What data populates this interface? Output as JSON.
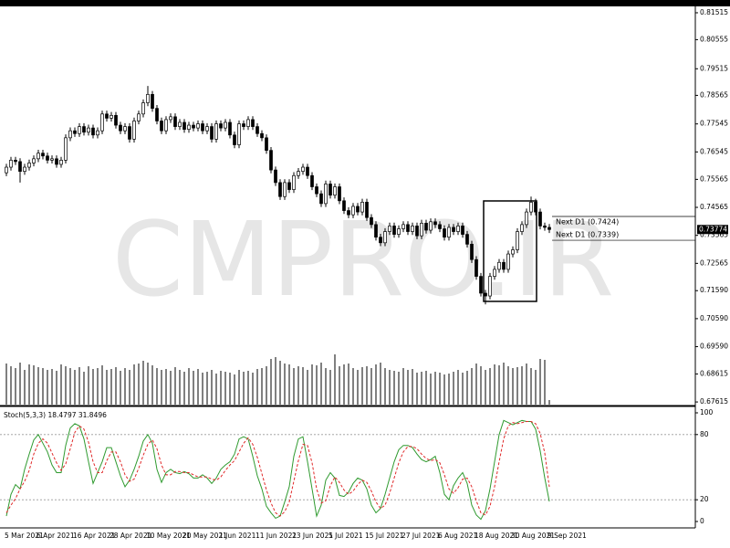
{
  "chart_data": [
    {
      "type": "candlestick",
      "watermark": "CMPRO.IR",
      "categories": [
        "5 Mar 2021",
        null,
        null,
        null,
        null,
        null,
        null,
        "6 Apr 2021",
        null,
        null,
        null,
        null,
        null,
        null,
        null,
        "16 Apr 2021",
        null,
        null,
        null,
        null,
        null,
        null,
        null,
        "28 Apr 2021",
        null,
        null,
        null,
        null,
        null,
        null,
        null,
        "10 May 2021",
        null,
        null,
        null,
        null,
        null,
        null,
        null,
        "20 May 2021",
        null,
        null,
        null,
        null,
        null,
        null,
        null,
        "1 Jun 2021",
        null,
        null,
        null,
        null,
        null,
        null,
        null,
        "11 Jun 2021",
        null,
        null,
        null,
        null,
        null,
        null,
        null,
        "23 Jun 2021",
        null,
        null,
        null,
        null,
        null,
        null,
        null,
        "5 Jul 2021",
        null,
        null,
        null,
        null,
        null,
        null,
        null,
        "15 Jul 2021",
        null,
        null,
        null,
        null,
        null,
        null,
        null,
        "27 Jul 2021",
        null,
        null,
        null,
        null,
        null,
        null,
        null,
        "6 Aug 2021",
        null,
        null,
        null,
        null,
        null,
        null,
        null,
        "18 Aug 2021",
        null,
        null,
        null,
        null,
        null,
        null,
        null,
        "30 Aug 2021",
        null,
        null,
        null,
        null,
        null,
        null,
        null,
        "9 Sep 2021"
      ],
      "open": [
        0.758,
        0.76,
        0.7625,
        0.762,
        0.7585,
        0.76,
        0.7615,
        0.763,
        0.765,
        0.764,
        0.7625,
        0.763,
        0.761,
        0.7625,
        0.7705,
        0.773,
        0.772,
        0.7745,
        0.7725,
        0.774,
        0.7715,
        0.773,
        0.779,
        0.7775,
        0.7785,
        0.775,
        0.773,
        0.7745,
        0.77,
        0.7765,
        0.779,
        0.783,
        0.786,
        0.781,
        0.7765,
        0.773,
        0.777,
        0.778,
        0.7745,
        0.776,
        0.7735,
        0.775,
        0.774,
        0.7755,
        0.773,
        0.7745,
        0.77,
        0.7755,
        0.774,
        0.776,
        0.7715,
        0.768,
        0.7755,
        0.7745,
        0.777,
        0.7745,
        0.772,
        0.7705,
        0.766,
        0.759,
        0.7545,
        0.7495,
        0.7545,
        0.752,
        0.757,
        0.7585,
        0.76,
        0.757,
        0.753,
        0.7505,
        0.747,
        0.754,
        0.75,
        0.753,
        0.748,
        0.7445,
        0.743,
        0.746,
        0.744,
        0.7475,
        0.742,
        0.7395,
        0.735,
        0.733,
        0.737,
        0.739,
        0.736,
        0.738,
        0.7395,
        0.737,
        0.739,
        0.7355,
        0.74,
        0.7375,
        0.7405,
        0.7395,
        0.738,
        0.735,
        0.7385,
        0.737,
        0.739,
        0.736,
        0.7325,
        0.727,
        0.721,
        0.715,
        0.714,
        0.721,
        0.7235,
        0.726,
        0.7235,
        0.729,
        0.7305,
        0.737,
        0.7395,
        0.744,
        0.7475,
        0.744,
        0.739,
        0.7385
      ],
      "high": [
        0.7612,
        0.7637,
        0.7637,
        0.7632,
        0.7612,
        0.7627,
        0.7642,
        0.7662,
        0.7662,
        0.7652,
        0.7642,
        0.7642,
        0.7637,
        0.7717,
        0.7742,
        0.7742,
        0.7757,
        0.7757,
        0.7752,
        0.7752,
        0.7742,
        0.7802,
        0.7802,
        0.7797,
        0.7797,
        0.7762,
        0.7757,
        0.7757,
        0.7777,
        0.7802,
        0.7842,
        0.789,
        0.7872,
        0.7822,
        0.7777,
        0.7782,
        0.7792,
        0.7792,
        0.7772,
        0.7772,
        0.7762,
        0.7762,
        0.7767,
        0.7767,
        0.7757,
        0.7757,
        0.7767,
        0.7767,
        0.7772,
        0.7772,
        0.7727,
        0.7767,
        0.7767,
        0.7782,
        0.7782,
        0.7757,
        0.7732,
        0.7717,
        0.7672,
        0.7602,
        0.7557,
        0.7557,
        0.7557,
        0.7582,
        0.7597,
        0.7612,
        0.7612,
        0.7582,
        0.7542,
        0.7517,
        0.7552,
        0.7552,
        0.7542,
        0.7542,
        0.7492,
        0.7457,
        0.7472,
        0.7472,
        0.7487,
        0.7487,
        0.7432,
        0.7407,
        0.7362,
        0.7382,
        0.7402,
        0.7402,
        0.7392,
        0.7407,
        0.7407,
        0.7402,
        0.7402,
        0.7412,
        0.7412,
        0.7417,
        0.7417,
        0.7407,
        0.7392,
        0.7397,
        0.7397,
        0.7402,
        0.7402,
        0.7372,
        0.7337,
        0.7282,
        0.7222,
        0.7162,
        0.7222,
        0.7247,
        0.7272,
        0.7272,
        0.7302,
        0.7317,
        0.7382,
        0.7407,
        0.7452,
        0.7495,
        0.7487,
        0.7452,
        0.7402,
        0.7397
      ],
      "low": [
        0.7568,
        0.7588,
        0.7608,
        0.7545,
        0.7573,
        0.7588,
        0.7603,
        0.7618,
        0.7628,
        0.7613,
        0.7613,
        0.7598,
        0.7598,
        0.7613,
        0.7693,
        0.7708,
        0.7708,
        0.7713,
        0.7713,
        0.7703,
        0.7703,
        0.7718,
        0.7763,
        0.7763,
        0.7738,
        0.7718,
        0.7718,
        0.7688,
        0.7688,
        0.7753,
        0.7778,
        0.7818,
        0.7798,
        0.7753,
        0.7718,
        0.7718,
        0.7758,
        0.7733,
        0.7733,
        0.7723,
        0.7723,
        0.7728,
        0.7728,
        0.7718,
        0.7718,
        0.7688,
        0.7688,
        0.7728,
        0.7728,
        0.7703,
        0.7668,
        0.7668,
        0.7733,
        0.7733,
        0.7733,
        0.7708,
        0.7693,
        0.7648,
        0.7578,
        0.7533,
        0.7483,
        0.7483,
        0.7508,
        0.7508,
        0.7558,
        0.7573,
        0.7558,
        0.7518,
        0.7493,
        0.7458,
        0.7458,
        0.7488,
        0.7488,
        0.7468,
        0.7433,
        0.7418,
        0.7418,
        0.7428,
        0.7428,
        0.7408,
        0.7383,
        0.7338,
        0.7318,
        0.7318,
        0.7358,
        0.7348,
        0.7348,
        0.7368,
        0.7358,
        0.7358,
        0.7343,
        0.7343,
        0.7363,
        0.7363,
        0.7383,
        0.7368,
        0.7338,
        0.7338,
        0.7358,
        0.7358,
        0.7348,
        0.7313,
        0.7258,
        0.7198,
        0.7138,
        0.711,
        0.7128,
        0.7198,
        0.7223,
        0.7223,
        0.7223,
        0.7278,
        0.7293,
        0.7358,
        0.7383,
        0.7428,
        0.7428,
        0.7378,
        0.7373,
        0.7365
      ],
      "close": [
        0.76,
        0.7625,
        0.762,
        0.7585,
        0.76,
        0.7615,
        0.763,
        0.765,
        0.764,
        0.7625,
        0.763,
        0.761,
        0.7625,
        0.7705,
        0.773,
        0.772,
        0.7745,
        0.7725,
        0.774,
        0.7715,
        0.773,
        0.779,
        0.7775,
        0.7785,
        0.775,
        0.773,
        0.7745,
        0.77,
        0.7765,
        0.779,
        0.783,
        0.786,
        0.781,
        0.7765,
        0.773,
        0.777,
        0.778,
        0.7745,
        0.776,
        0.7735,
        0.775,
        0.774,
        0.7755,
        0.773,
        0.7745,
        0.77,
        0.7755,
        0.774,
        0.776,
        0.7715,
        0.768,
        0.7755,
        0.7745,
        0.777,
        0.7745,
        0.772,
        0.7705,
        0.766,
        0.759,
        0.7545,
        0.7495,
        0.7545,
        0.752,
        0.757,
        0.7585,
        0.76,
        0.757,
        0.753,
        0.7505,
        0.747,
        0.754,
        0.75,
        0.753,
        0.748,
        0.7445,
        0.743,
        0.746,
        0.744,
        0.7475,
        0.742,
        0.7395,
        0.735,
        0.733,
        0.737,
        0.739,
        0.736,
        0.738,
        0.7395,
        0.737,
        0.739,
        0.7355,
        0.74,
        0.7375,
        0.7405,
        0.7395,
        0.738,
        0.735,
        0.7385,
        0.737,
        0.739,
        0.736,
        0.7325,
        0.727,
        0.721,
        0.715,
        0.714,
        0.721,
        0.7235,
        0.726,
        0.7235,
        0.729,
        0.7305,
        0.737,
        0.7395,
        0.744,
        0.7475,
        0.744,
        0.739,
        0.7385,
        0.73774
      ],
      "volume": [
        45,
        42,
        40,
        46,
        38,
        44,
        43,
        41,
        40,
        38,
        39,
        37,
        44,
        42,
        40,
        38,
        41,
        36,
        42,
        39,
        40,
        43,
        38,
        39,
        41,
        37,
        40,
        38,
        44,
        45,
        48,
        46,
        43,
        40,
        38,
        39,
        37,
        41,
        38,
        36,
        40,
        37,
        39,
        35,
        36,
        38,
        34,
        37,
        36,
        35,
        33,
        38,
        36,
        37,
        35,
        39,
        40,
        42,
        50,
        52,
        48,
        45,
        44,
        40,
        42,
        41,
        38,
        44,
        43,
        46,
        40,
        38,
        55,
        42,
        44,
        45,
        40,
        38,
        41,
        42,
        40,
        44,
        46,
        40,
        38,
        37,
        36,
        40,
        38,
        39,
        35,
        36,
        37,
        34,
        36,
        35,
        33,
        34,
        36,
        38,
        35,
        37,
        40,
        45,
        42,
        38,
        40,
        44,
        43,
        46,
        42,
        40,
        41,
        42,
        45,
        40,
        38,
        50,
        49,
        5
      ],
      "ylim": [
        0.6752,
        0.8171
      ],
      "yticks": [
        0.81515,
        0.80555,
        0.79515,
        0.78565,
        0.77545,
        0.76545,
        0.75565,
        0.74565,
        0.73565,
        0.72565,
        {
          "value": 0.7159,
          "label": "0.71590"
        },
        {
          "value": 0.7059,
          "label": "0.70590"
        },
        {
          "value": 0.6959,
          "label": "0.69590"
        },
        0.68615,
        0.67615
      ],
      "levels": [
        {
          "label": "Next D1 (0.7424)",
          "value": 0.7424
        },
        {
          "label": "Next D1 (0.7339)",
          "value": 0.7339
        }
      ],
      "up_color": "#ffffff",
      "down_color": "#000000",
      "volume_color": "#000000"
    },
    {
      "type": "line",
      "title": "Stoch(5,3,3) 18.4797 31.8496",
      "ylim": [
        -5.9,
        104.2
      ],
      "yticks": [
        100,
        80,
        20,
        0
      ],
      "dotted_levels": [
        20,
        80
      ],
      "series": [
        {
          "color": "#2f9a2f",
          "values": [
            5,
            25,
            34,
            30,
            48,
            62,
            75,
            80,
            72,
            64,
            52,
            45,
            45,
            70,
            86,
            90,
            88,
            76,
            55,
            35,
            45,
            55,
            68,
            68,
            55,
            42,
            32,
            38,
            48,
            60,
            74,
            80,
            72,
            48,
            36,
            45,
            48,
            45,
            44,
            46,
            44,
            40,
            40,
            43,
            40,
            35,
            40,
            48,
            52,
            55,
            62,
            76,
            78,
            76,
            60,
            42,
            30,
            14,
            8,
            3,
            5,
            18,
            32,
            60,
            76,
            78,
            55,
            30,
            5,
            15,
            38,
            45,
            40,
            24,
            23,
            27,
            35,
            40,
            38,
            30,
            15,
            8,
            12,
            25,
            40,
            55,
            66,
            70,
            70,
            68,
            62,
            57,
            55,
            57,
            60,
            45,
            25,
            20,
            33,
            40,
            45,
            35,
            15,
            6,
            2,
            10,
            30,
            55,
            80,
            93,
            91,
            89,
            91,
            93,
            92,
            92,
            85,
            65,
            40,
            18.4797
          ]
        },
        {
          "color": "#e02828",
          "dash": true,
          "values": [
            8,
            15,
            21,
            30,
            37,
            47,
            62,
            72,
            76,
            72,
            63,
            54,
            47,
            53,
            67,
            82,
            88,
            85,
            73,
            55,
            45,
            45,
            56,
            64,
            64,
            55,
            43,
            37,
            39,
            49,
            61,
            71,
            75,
            67,
            52,
            43,
            43,
            46,
            46,
            45,
            45,
            43,
            41,
            41,
            41,
            39,
            38,
            41,
            47,
            52,
            56,
            64,
            72,
            77,
            71,
            59,
            44,
            29,
            17,
            8,
            5,
            9,
            18,
            37,
            56,
            71,
            70,
            54,
            30,
            17,
            19,
            33,
            41,
            36,
            29,
            25,
            28,
            34,
            38,
            36,
            28,
            18,
            12,
            15,
            26,
            40,
            54,
            64,
            69,
            69,
            67,
            62,
            58,
            56,
            57,
            54,
            43,
            30,
            26,
            31,
            39,
            40,
            32,
            19,
            8,
            6,
            14,
            32,
            55,
            76,
            88,
            91,
            90,
            91,
            92,
            92,
            90,
            81,
            63,
            31.8496
          ]
        }
      ]
    }
  ]
}
